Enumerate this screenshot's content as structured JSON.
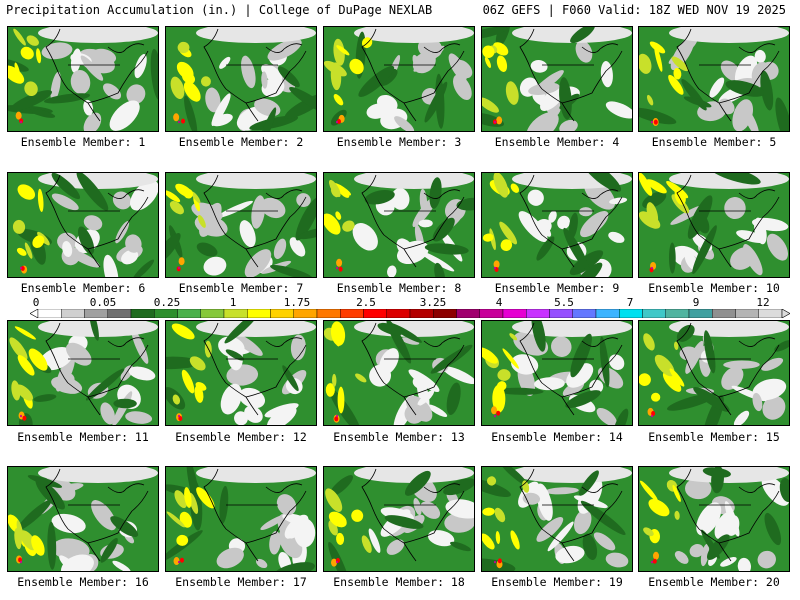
{
  "header": {
    "left_title": "Precipitation Accumulation (in.) | College of DuPage NEXLAB",
    "right_title": "06Z GEFS | F060 Valid: 18Z WED NOV 19 2025"
  },
  "colorbar": {
    "tick_labels": [
      "0",
      "0.05",
      "0.25",
      "1",
      "1.75",
      "2.5",
      "3.25",
      "4",
      "5.5",
      "7",
      "9",
      "12"
    ],
    "colors": [
      "#ffffff",
      "#d0d0d0",
      "#a0a0a0",
      "#707070",
      "#1f6b1f",
      "#2d8f2d",
      "#4bb14b",
      "#86c83a",
      "#c8e02a",
      "#ffff00",
      "#ffd200",
      "#ffa500",
      "#ff7800",
      "#ff3c00",
      "#ff0000",
      "#dc0000",
      "#b40000",
      "#8c0000",
      "#a0006e",
      "#c8009a",
      "#e600d2",
      "#c832ff",
      "#9650ff",
      "#6478ff",
      "#3cb4ff",
      "#00e0f0",
      "#40c8c8",
      "#50b4a0",
      "#40a0a0",
      "#909090",
      "#b4b4b4",
      "#dcdcdc"
    ]
  },
  "panels": [
    {
      "label": "Ensemble Member: 1"
    },
    {
      "label": "Ensemble Member: 2"
    },
    {
      "label": "Ensemble Member: 3"
    },
    {
      "label": "Ensemble Member: 4"
    },
    {
      "label": "Ensemble Member: 5"
    },
    {
      "label": "Ensemble Member: 6"
    },
    {
      "label": "Ensemble Member: 7"
    },
    {
      "label": "Ensemble Member: 8"
    },
    {
      "label": "Ensemble Member: 9"
    },
    {
      "label": "Ensemble Member: 10"
    },
    {
      "label": "Ensemble Member: 11"
    },
    {
      "label": "Ensemble Member: 12"
    },
    {
      "label": "Ensemble Member: 13"
    },
    {
      "label": "Ensemble Member: 14"
    },
    {
      "label": "Ensemble Member: 15"
    },
    {
      "label": "Ensemble Member: 16"
    },
    {
      "label": "Ensemble Member: 17"
    },
    {
      "label": "Ensemble Member: 18"
    },
    {
      "label": "Ensemble Member: 19"
    },
    {
      "label": "Ensemble Member: 20"
    }
  ]
}
